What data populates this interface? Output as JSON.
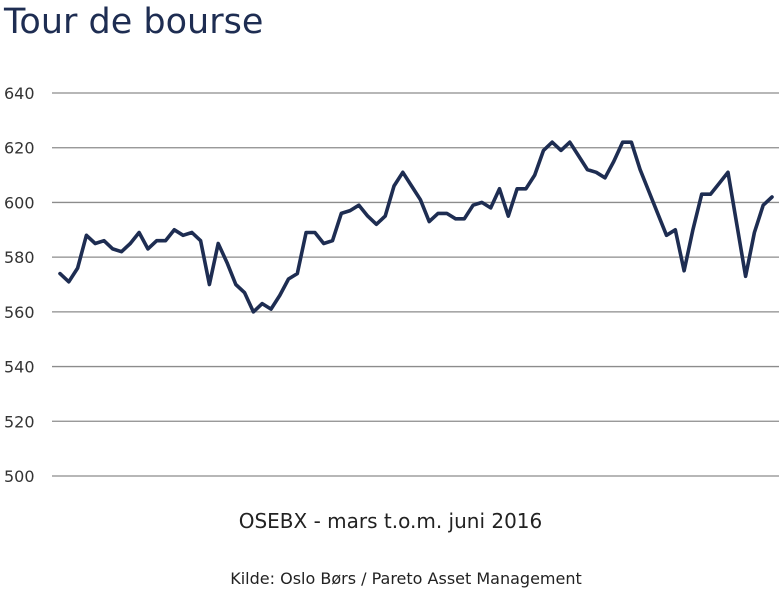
{
  "chart_data": {
    "type": "line",
    "title": "Tour de bourse",
    "xlabel": "OSEBX - mars t.o.m. juni 2016",
    "source": "Kilde: Oslo Børs / Pareto Asset Management",
    "ylim": [
      500,
      640
    ],
    "yticks": [
      640,
      620,
      600,
      580,
      560,
      540,
      520,
      500
    ],
    "grid": true,
    "series": [
      {
        "color": "#1e2d52",
        "values": [
          574,
          571,
          576,
          588,
          585,
          586,
          583,
          582,
          585,
          589,
          583,
          586,
          586,
          590,
          588,
          589,
          586,
          570,
          585,
          578,
          570,
          567,
          560,
          563,
          561,
          566,
          572,
          574,
          589,
          589,
          585,
          586,
          596,
          597,
          599,
          595,
          592,
          595,
          606,
          611,
          606,
          601,
          593,
          596,
          596,
          594,
          594,
          599,
          600,
          598,
          605,
          595,
          605,
          605,
          610,
          619,
          622,
          619,
          622,
          617,
          612,
          611,
          609,
          615,
          622,
          622,
          612,
          604,
          596,
          588,
          590,
          575,
          590,
          603,
          603,
          607,
          611,
          592,
          573,
          589,
          599,
          602
        ]
      }
    ]
  }
}
